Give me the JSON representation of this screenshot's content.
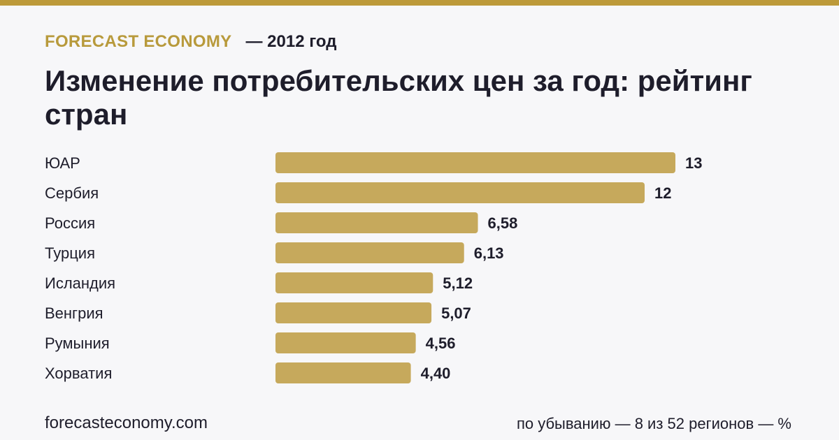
{
  "header": {
    "brand": "FORECAST ECONOMY",
    "year_label": "— 2012 год",
    "title": "Изменение потребительских цен за год: рейтинг стран"
  },
  "footer": {
    "site": "forecasteconomy.com",
    "note": "по убыванию — 8 из 52 регионов — %"
  },
  "colors": {
    "accent": "#bd9a3a",
    "bar": "#c6a95c",
    "text": "#1e1d2b",
    "background": "#f7f7f9"
  },
  "chart_data": {
    "type": "bar",
    "orientation": "horizontal",
    "categories": [
      "ЮАР",
      "Сербия",
      "Россия",
      "Турция",
      "Исландия",
      "Венгрия",
      "Румыния",
      "Хорватия"
    ],
    "values": [
      13,
      12,
      6.58,
      6.13,
      5.12,
      5.07,
      4.56,
      4.4
    ],
    "value_labels": [
      "13",
      "12",
      "6,58",
      "6,13",
      "5,12",
      "5,07",
      "4,56",
      "4,40"
    ],
    "title": "Изменение потребительских цен за год: рейтинг стран",
    "xlabel": "",
    "ylabel": "",
    "xlim": [
      0,
      13
    ],
    "grid": false,
    "legend": "none"
  }
}
